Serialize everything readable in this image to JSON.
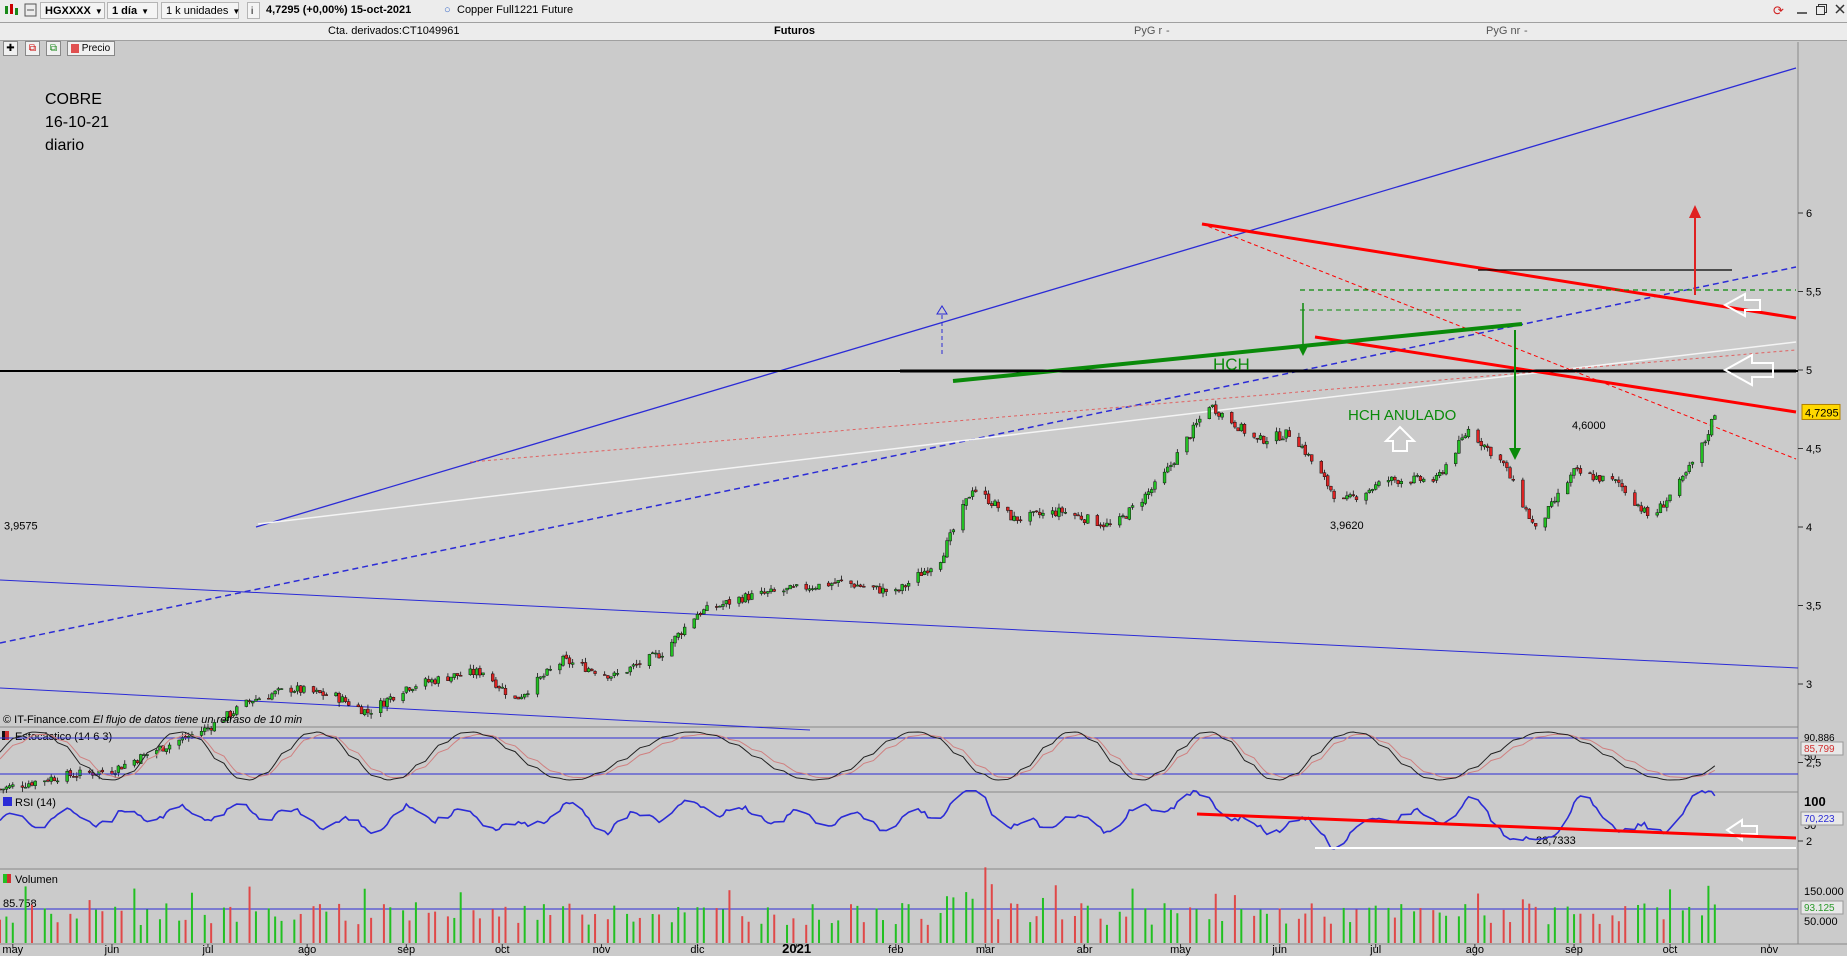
{
  "toolbar": {
    "symbol": "HGXXXX",
    "period": "1 día",
    "units": "1 k unidades",
    "info_icon": "info-icon",
    "quote": "4,7295 (+0,00%) 15-oct-2021",
    "instrument": "Copper Full1221 Future",
    "window_controls": [
      "refresh-icon",
      "minimize-icon",
      "restore-icon",
      "close-icon"
    ]
  },
  "subheader": {
    "account": "Cta. derivados:CT1049961",
    "section": "Futuros",
    "pyg_r": "PyG r",
    "pyg_nr": "PyG nr",
    "dash": "-"
  },
  "chart_tools": {
    "price_label": "Precio"
  },
  "annotation": {
    "line1": "COBRE",
    "line2": "16-10-21",
    "line3": "diario"
  },
  "copyright": "© IT-Finance.com",
  "delay_notice": "El flujo de datos tiene un retraso de 10 min",
  "chart_data": [
    {
      "type": "candlestick",
      "instrument": "Copper Full1221 Future (HGXXXX)",
      "x_tick_labels": [
        "may",
        "jun",
        "jul",
        "ago",
        "sep",
        "oct",
        "nov",
        "dic",
        "2021",
        "feb",
        "mar",
        "abr",
        "may",
        "jun",
        "jul",
        "ago",
        "sep",
        "oct",
        "nov"
      ],
      "y_tick_labels": [
        "6",
        "5,5",
        "5",
        "4,5",
        "4",
        "3,5",
        "3",
        "2,5",
        "2"
      ],
      "ylim": [
        1.8,
        6.05
      ],
      "last_value_label": "4,7295",
      "close_path": [
        [
          "2020-04-27",
          2.33
        ],
        [
          "2020-05-15",
          2.41
        ],
        [
          "2020-06-01",
          2.45
        ],
        [
          "2020-06-15",
          2.58
        ],
        [
          "2020-07-01",
          2.72
        ],
        [
          "2020-07-15",
          2.9
        ],
        [
          "2020-07-27",
          2.97
        ],
        [
          "2020-08-10",
          2.92
        ],
        [
          "2020-08-20",
          2.82
        ],
        [
          "2020-09-01",
          2.98
        ],
        [
          "2020-09-15",
          3.05
        ],
        [
          "2020-09-25",
          3.08
        ],
        [
          "2020-10-05",
          2.9
        ],
        [
          "2020-10-20",
          3.15
        ],
        [
          "2020-11-05",
          3.05
        ],
        [
          "2020-11-20",
          3.2
        ],
        [
          "2020-12-01",
          3.45
        ],
        [
          "2020-12-15",
          3.55
        ],
        [
          "2021-01-05",
          3.62
        ],
        [
          "2021-01-15",
          3.65
        ],
        [
          "2021-02-01",
          3.58
        ],
        [
          "2021-02-15",
          3.8
        ],
        [
          "2021-02-25",
          4.25
        ],
        [
          "2021-03-10",
          4.05
        ],
        [
          "2021-03-25",
          4.1
        ],
        [
          "2021-04-10",
          4.0
        ],
        [
          "2021-04-25",
          4.3
        ],
        [
          "2021-05-10",
          4.78
        ],
        [
          "2021-05-25",
          4.55
        ],
        [
          "2021-06-05",
          4.6
        ],
        [
          "2021-06-20",
          4.15
        ],
        [
          "2021-07-05",
          4.3
        ],
        [
          "2021-07-20",
          4.3
        ],
        [
          "2021-07-30",
          4.62
        ],
        [
          "2021-08-10",
          4.4
        ],
        [
          "2021-08-20",
          3.98
        ],
        [
          "2021-09-01",
          4.35
        ],
        [
          "2021-09-15",
          4.28
        ],
        [
          "2021-09-25",
          4.05
        ],
        [
          "2021-10-05",
          4.3
        ],
        [
          "2021-10-12",
          4.55
        ],
        [
          "2021-10-15",
          4.7295
        ]
      ],
      "levels": [
        {
          "label": "3,9575",
          "value": 3.9575
        },
        {
          "label": "3,9620",
          "value": 3.962
        },
        {
          "label": "4,6000",
          "value": 4.6
        }
      ],
      "annotations": [
        "HCH",
        "HCH ANULADO"
      ]
    },
    {
      "type": "line",
      "title": "Estocástico (14 6 3)",
      "y_tick_labels": [
        "50"
      ],
      "value_labels": [
        "90,886",
        "85,799"
      ],
      "reference_levels": [
        80,
        20
      ]
    },
    {
      "type": "line",
      "title": "RSI (14)",
      "y_tick_labels": [
        "100",
        "50"
      ],
      "value_labels": [
        "70,223",
        "28,7333"
      ]
    },
    {
      "type": "bar",
      "title": "Volumen",
      "last_value_label": "85.758",
      "y_tick_labels": [
        "150.000",
        "50.000"
      ],
      "value_labels": [
        "93.125"
      ]
    }
  ],
  "colors": {
    "up_candle": "#22c022",
    "down_candle": "#dd2222",
    "channel": "#2b2bd6",
    "resistance": "#ff0000",
    "support": "#0a8a0a",
    "panel_bg": "#cbcbcb"
  }
}
